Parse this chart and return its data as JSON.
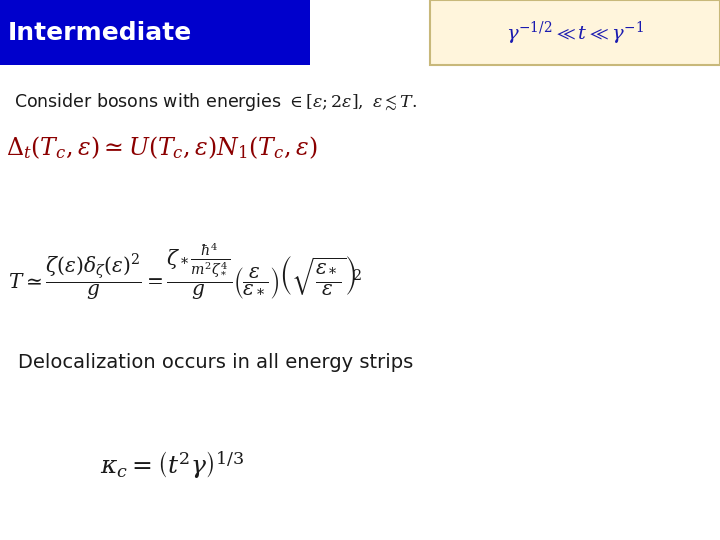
{
  "title": "Intermediate",
  "title_bg_color": "#0000CC",
  "title_text_color": "#FFFFFF",
  "title_fontsize": 18,
  "bg_color": "#FFFFFF",
  "cream_box_color": "#FFF5DC",
  "cream_box_border": "#C8B87A",
  "formula_color_blue": "#1A1AB0",
  "formula_color_red": "#8B0000",
  "formula_color_black": "#1A1A1A",
  "top_right_formula": "$\\gamma^{-1/2} \\ll t \\ll \\gamma^{-1}$",
  "deloc_text": "Delocalization occurs in all energy strips",
  "deloc_fontsize": 14
}
